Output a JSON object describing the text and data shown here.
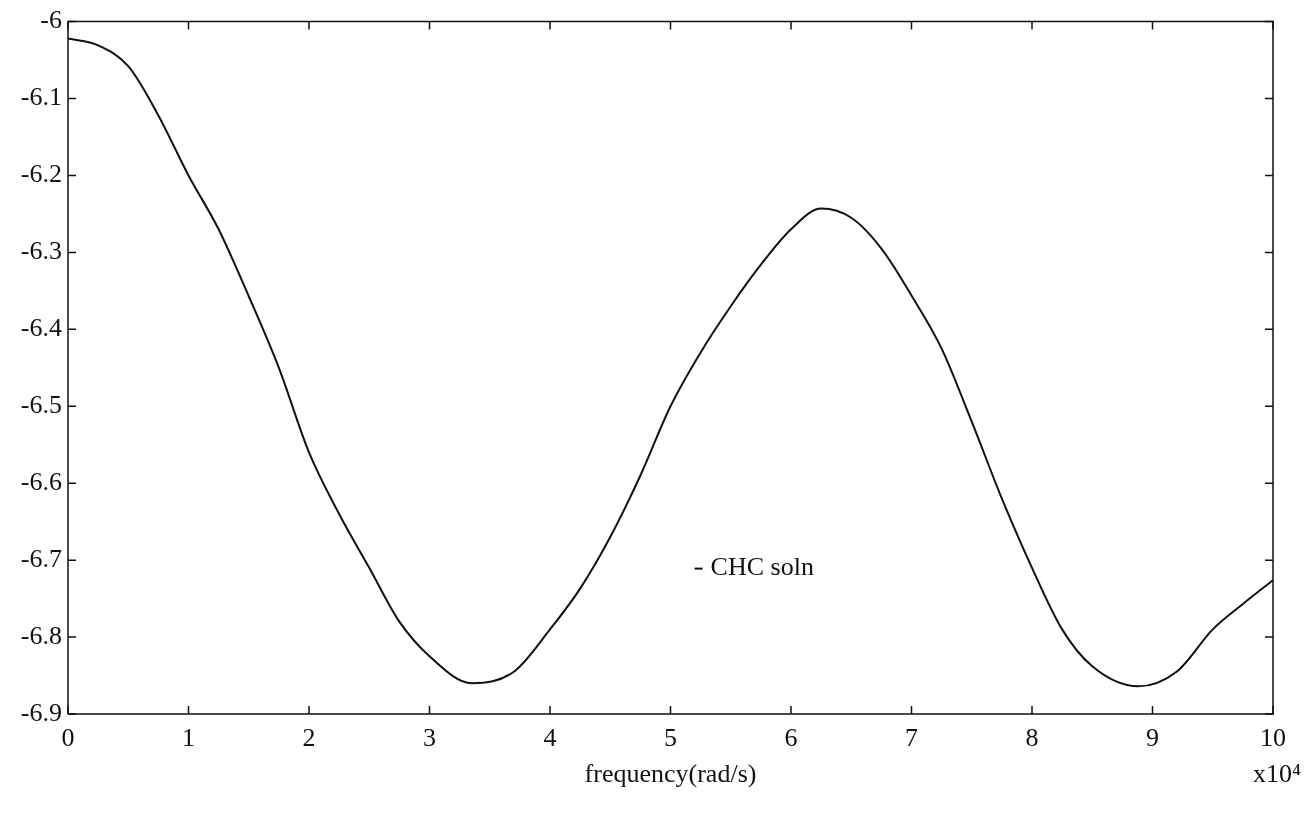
{
  "chart_data": {
    "type": "line",
    "xlabel": "frequency(rad/s)",
    "annotations": [
      "x10⁴"
    ],
    "x": [
      0,
      0.25,
      0.5,
      0.75,
      1,
      1.25,
      1.5,
      1.75,
      2,
      2.25,
      2.5,
      2.75,
      3,
      3.35,
      3.7,
      4,
      4.25,
      4.5,
      4.75,
      5,
      5.25,
      5.5,
      5.75,
      6,
      6.25,
      6.5,
      6.75,
      7,
      7.25,
      7.5,
      7.75,
      8,
      8.25,
      8.5,
      8.88,
      9.2,
      9.5,
      9.75,
      10
    ],
    "series": [
      {
        "name": "CHC soln",
        "color": "#111111",
        "values": [
          -6.022,
          -6.031,
          -6.058,
          -6.122,
          -6.2,
          -6.27,
          -6.357,
          -6.45,
          -6.56,
          -6.64,
          -6.71,
          -6.78,
          -6.825,
          -6.86,
          -6.845,
          -6.79,
          -6.737,
          -6.67,
          -6.59,
          -6.5,
          -6.43,
          -6.37,
          -6.316,
          -6.27,
          -6.243,
          -6.255,
          -6.295,
          -6.356,
          -6.425,
          -6.52,
          -6.62,
          -6.71,
          -6.79,
          -6.838,
          -6.864,
          -6.845,
          -6.79,
          -6.757,
          -6.726
        ]
      }
    ],
    "xlim": [
      0,
      10
    ],
    "xticks": [
      0,
      1,
      2,
      3,
      4,
      5,
      6,
      7,
      8,
      9,
      10
    ],
    "ylim": [
      -6.9,
      -6
    ],
    "yticks": [
      -6.9,
      -6.8,
      -6.7,
      -6.6,
      -6.5,
      -6.4,
      -6.3,
      -6.2,
      -6.1,
      -6
    ],
    "grid": false,
    "legend": "bottom",
    "marker": "none",
    "line_style": "solid"
  }
}
